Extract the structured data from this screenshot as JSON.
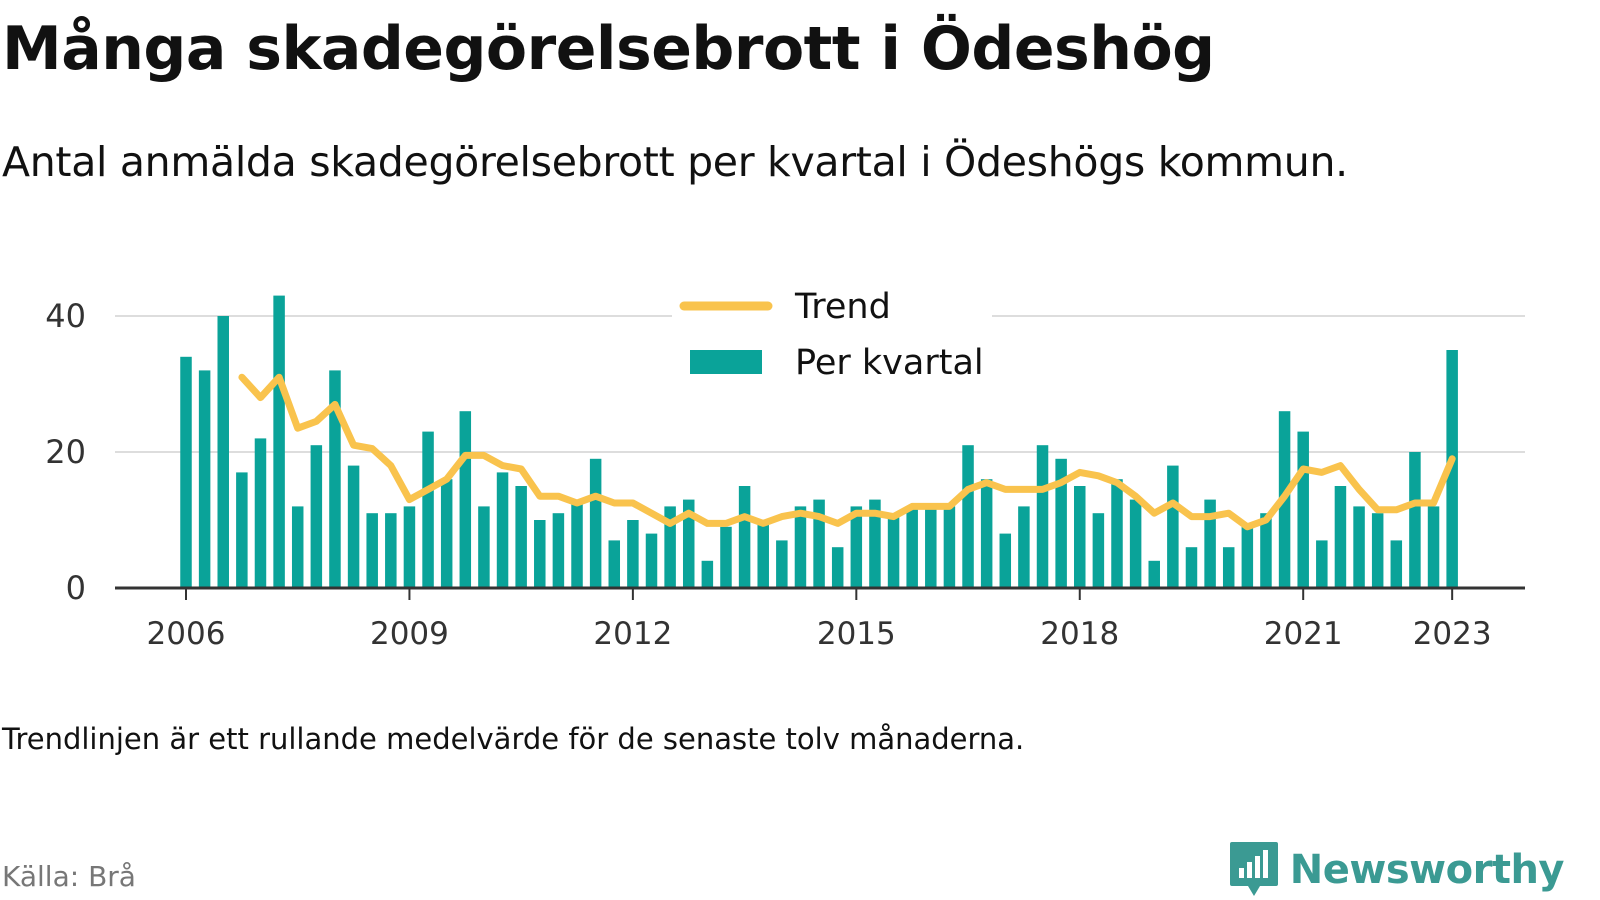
{
  "header": {
    "title": "Många skadegörelsebrott i Ödeshög",
    "subtitle": "Antal anmälda skadegörelsebrott per kvartal i Ödeshögs kommun."
  },
  "footer": {
    "note": "Trendlinjen är ett rullande medelvärde för de senaste tolv månaderna.",
    "source": "Källa: Brå",
    "brand": "Newsworthy"
  },
  "colors": {
    "bars": "#0aa399",
    "trend": "#f9c34d",
    "grid": "#dddddd",
    "axis": "#333333",
    "brand": "#3b9a93"
  },
  "chart_data": {
    "type": "bar",
    "legend_placement": "top-center",
    "grid": true,
    "ylim": [
      0,
      43
    ],
    "y_ticks": [
      "0",
      "20",
      "40"
    ],
    "x_ticks": [
      "2006",
      "2009",
      "2012",
      "2015",
      "2018",
      "2021",
      "2023"
    ],
    "x_tick_positions": [
      0,
      12,
      24,
      36,
      48,
      60,
      68
    ],
    "series": [
      {
        "name": "Per kvartal",
        "kind": "bar",
        "values": [
          34,
          32,
          40,
          17,
          22,
          43,
          12,
          21,
          32,
          18,
          11,
          11,
          12,
          23,
          16,
          26,
          12,
          17,
          15,
          10,
          11,
          13,
          19,
          7,
          10,
          8,
          12,
          13,
          4,
          9,
          15,
          10,
          7,
          12,
          13,
          6,
          12,
          13,
          11,
          12,
          12,
          12,
          21,
          16,
          8,
          12,
          21,
          19,
          15,
          11,
          16,
          13,
          4,
          18,
          6,
          13,
          6,
          9,
          11,
          26,
          23,
          7,
          15,
          12,
          11,
          7,
          20,
          12,
          35
        ]
      },
      {
        "name": "Trend",
        "kind": "line",
        "values": [
          null,
          null,
          null,
          31,
          28,
          31,
          23.5,
          24.5,
          27,
          21,
          20.5,
          18,
          13,
          14.5,
          16,
          19.5,
          19.5,
          18,
          17.5,
          13.5,
          13.5,
          12.5,
          13.5,
          12.5,
          12.5,
          11,
          9.5,
          11,
          9.5,
          9.5,
          10.5,
          9.5,
          10.5,
          11,
          10.5,
          9.5,
          11,
          11,
          10.5,
          12,
          12,
          12,
          14.5,
          15.5,
          14.5,
          14.5,
          14.5,
          15.5,
          17,
          16.5,
          15.5,
          13.5,
          11,
          12.5,
          10.5,
          10.5,
          11,
          9,
          10,
          13.5,
          17.5,
          17,
          18,
          14.5,
          11.5,
          11.5,
          12.5,
          12.5,
          19
        ]
      }
    ]
  }
}
